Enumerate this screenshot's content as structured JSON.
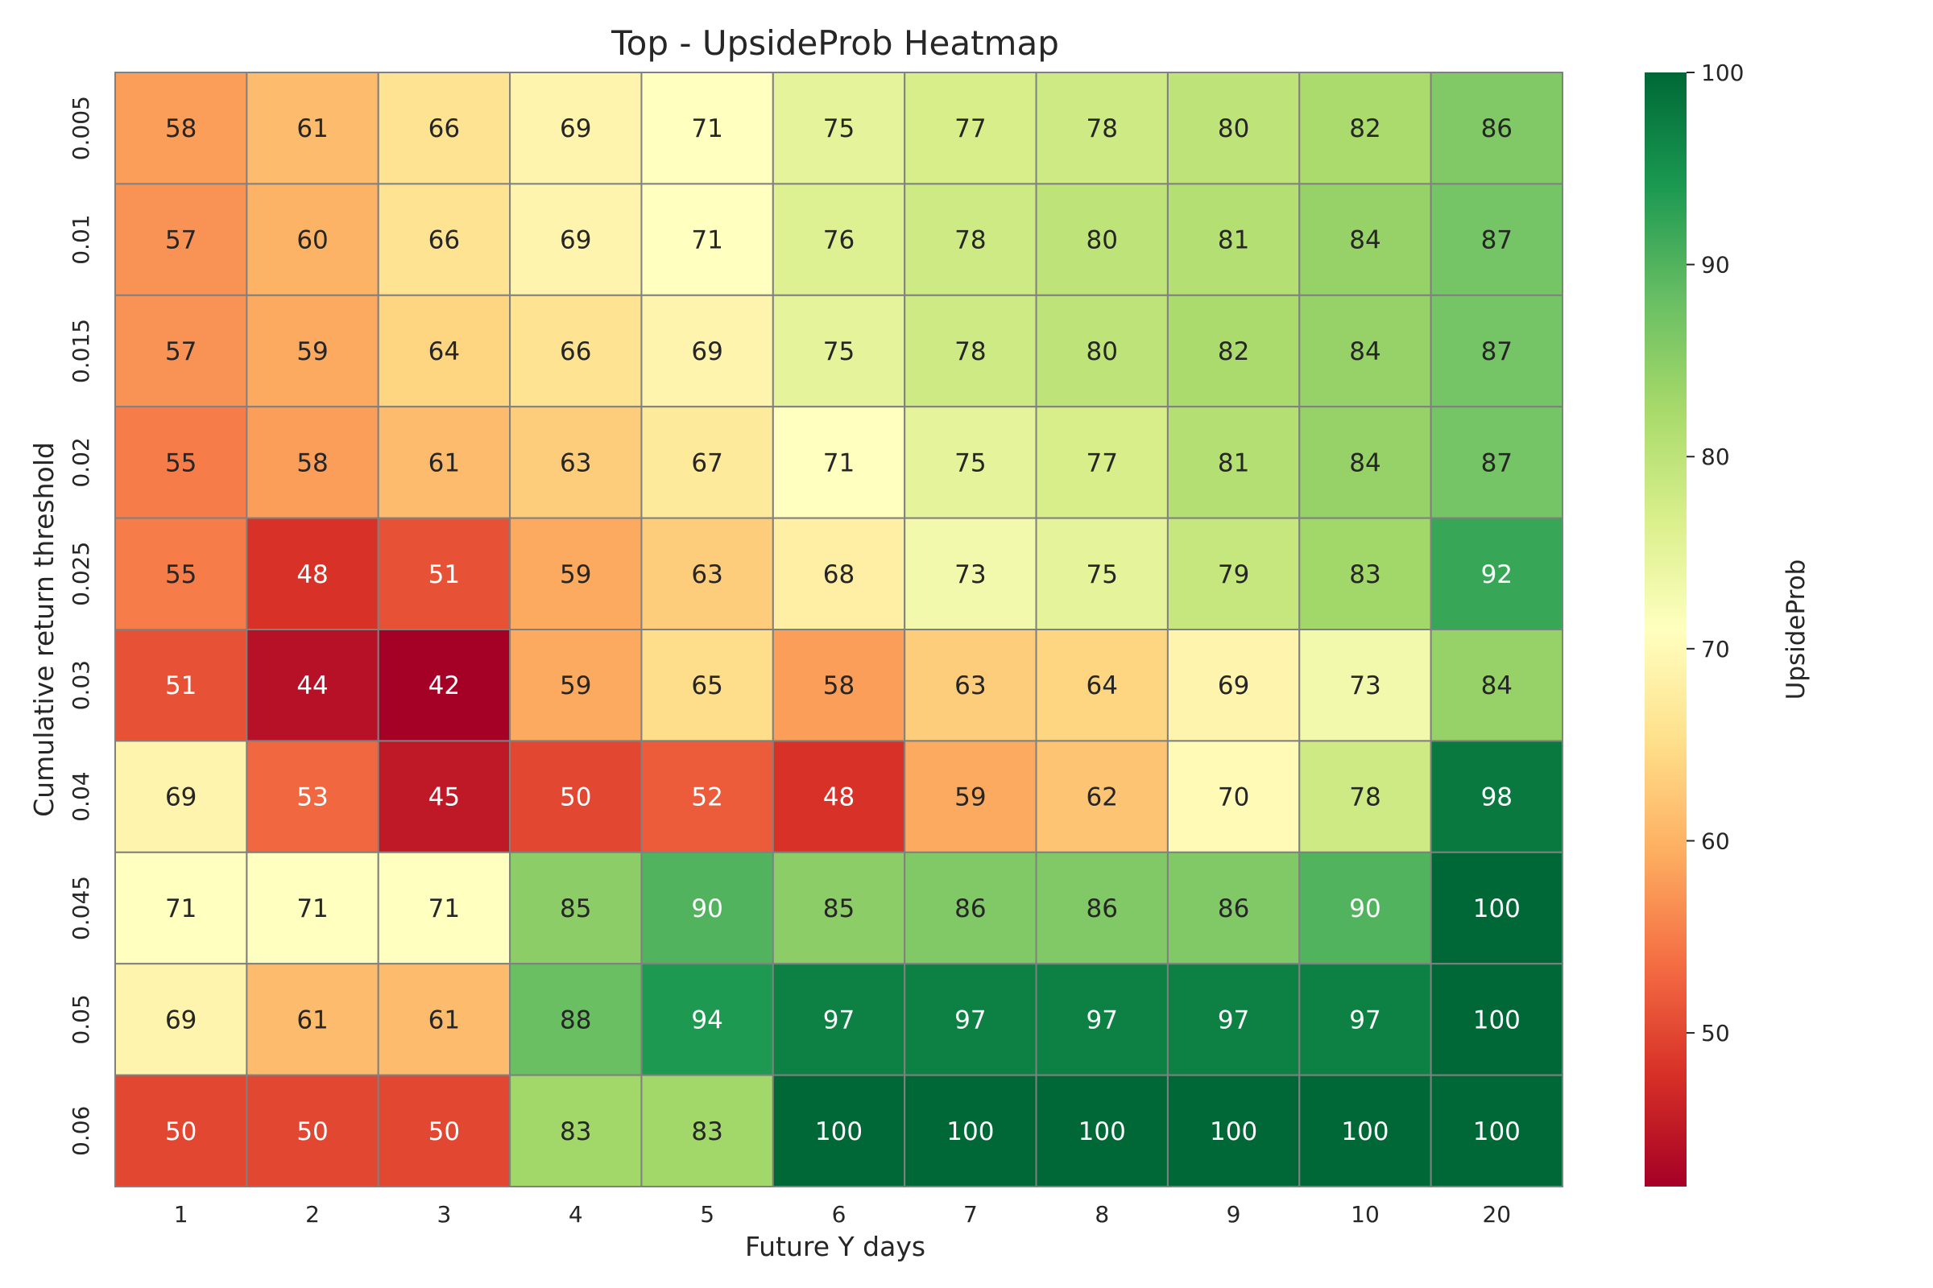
{
  "chart_data": {
    "type": "heatmap",
    "title": "Top - UpsideProb Heatmap",
    "xlabel": "Future Y days",
    "ylabel": "Cumulative return threshold",
    "x_categories": [
      "1",
      "2",
      "3",
      "4",
      "5",
      "6",
      "7",
      "8",
      "9",
      "10",
      "20"
    ],
    "y_categories": [
      "0.005",
      "0.01",
      "0.015",
      "0.02",
      "0.025",
      "0.03",
      "0.04",
      "0.045",
      "0.05",
      "0.06"
    ],
    "values": [
      [
        58,
        61,
        66,
        69,
        71,
        75,
        77,
        78,
        80,
        82,
        86
      ],
      [
        57,
        60,
        66,
        69,
        71,
        76,
        78,
        80,
        81,
        84,
        87
      ],
      [
        57,
        59,
        64,
        66,
        69,
        75,
        78,
        80,
        82,
        84,
        87
      ],
      [
        55,
        58,
        61,
        63,
        67,
        71,
        75,
        77,
        81,
        84,
        87
      ],
      [
        55,
        48,
        51,
        59,
        63,
        68,
        73,
        75,
        79,
        83,
        92
      ],
      [
        51,
        44,
        42,
        59,
        65,
        58,
        63,
        64,
        69,
        73,
        84
      ],
      [
        69,
        53,
        45,
        50,
        52,
        48,
        59,
        62,
        70,
        78,
        98
      ],
      [
        71,
        71,
        71,
        85,
        90,
        85,
        86,
        86,
        86,
        90,
        100
      ],
      [
        69,
        61,
        61,
        88,
        94,
        97,
        97,
        97,
        97,
        97,
        100
      ],
      [
        50,
        50,
        50,
        83,
        83,
        100,
        100,
        100,
        100,
        100,
        100
      ]
    ],
    "colorbar": {
      "label": "UpsideProb",
      "ticks": [
        "50",
        "60",
        "70",
        "80",
        "90",
        "100"
      ],
      "range": [
        42,
        100
      ],
      "colormap": "RdYlGn"
    },
    "cell_border_color": "#808080"
  }
}
